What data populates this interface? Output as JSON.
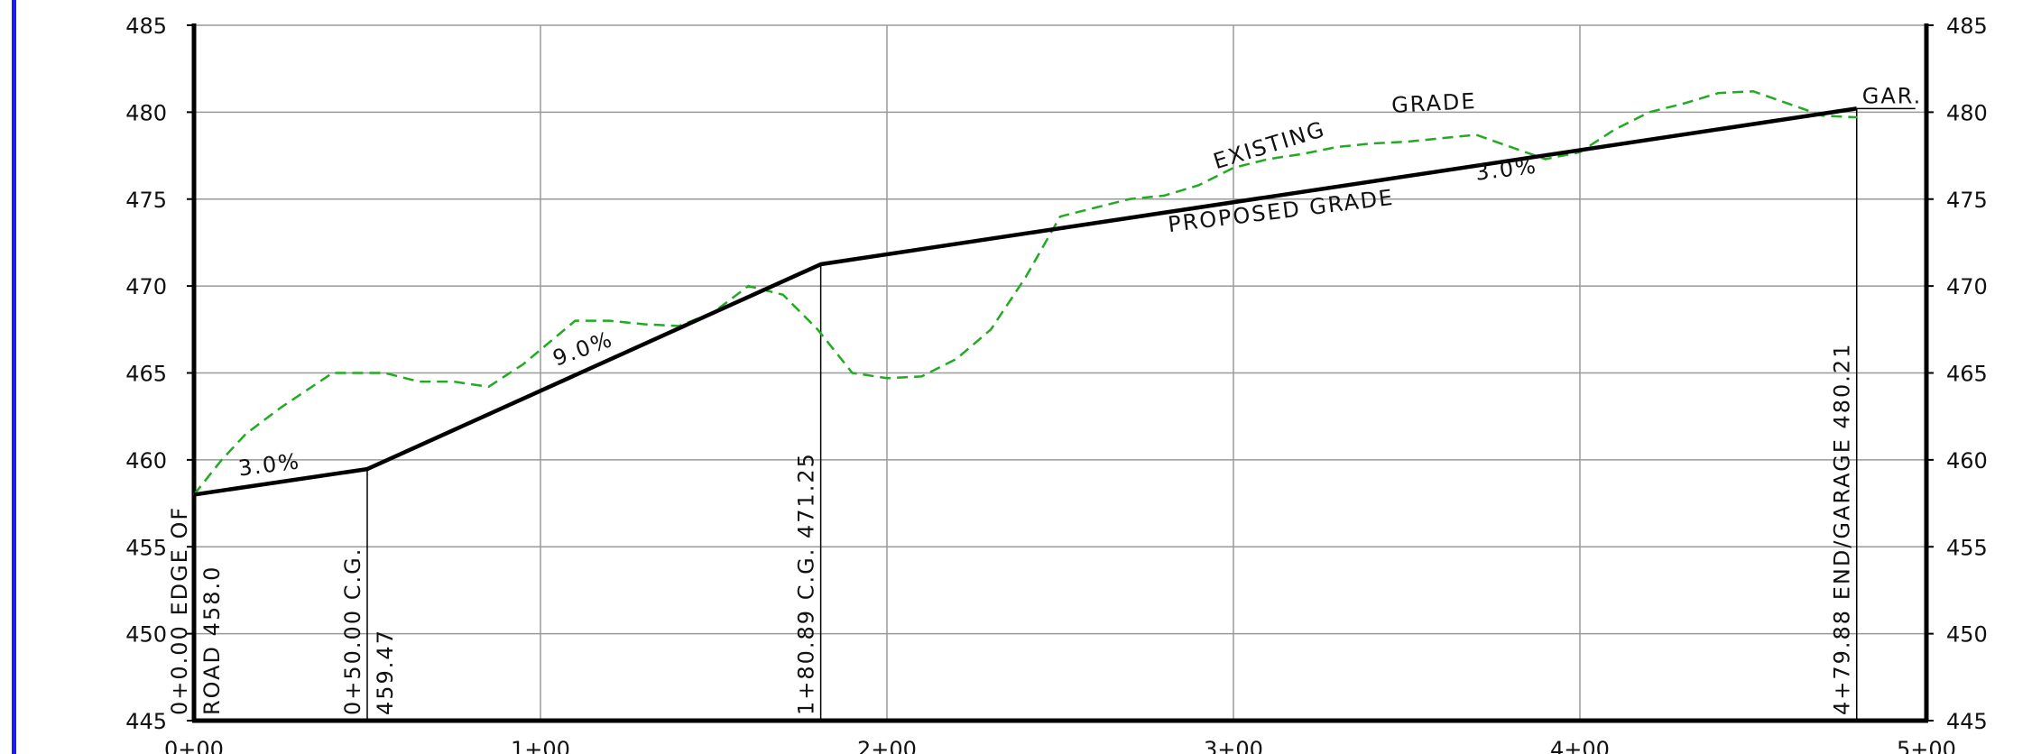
{
  "chart_data": {
    "type": "line",
    "xlabel": "",
    "ylabel": "",
    "xlim": [
      0,
      500
    ],
    "ylim": [
      445,
      485
    ],
    "x_ticks": [
      "0+00",
      "1+00",
      "2+00",
      "3+00",
      "4+00",
      "5+00"
    ],
    "y_ticks": [
      "445",
      "450",
      "455",
      "460",
      "465",
      "470",
      "475",
      "480",
      "485"
    ],
    "grid": true,
    "colors": {
      "proposed": "#000000",
      "existing": "#22aa22",
      "frame_accent": "#1a1aff",
      "grid": "#9a9a9a"
    },
    "series": [
      {
        "name": "PROPOSED GRADE",
        "style": "solid",
        "x": [
          0,
          50,
          180.89,
          479.88
        ],
        "y": [
          458.0,
          459.47,
          471.25,
          480.21
        ]
      },
      {
        "name": "EXISTING GRADE",
        "style": "dashed",
        "x": [
          0,
          8,
          15,
          25,
          40,
          55,
          65,
          75,
          85,
          95,
          110,
          120,
          130,
          140,
          150,
          160,
          170,
          180,
          190,
          200,
          210,
          220,
          230,
          240,
          250,
          260,
          270,
          280,
          290,
          300,
          310,
          320,
          330,
          340,
          350,
          360,
          370,
          380,
          390,
          400,
          410,
          420,
          430,
          440,
          450,
          460,
          470,
          480
        ],
        "y": [
          458.0,
          460.0,
          461.5,
          463.0,
          465.0,
          465.0,
          464.5,
          464.5,
          464.2,
          465.5,
          468.0,
          468.0,
          467.8,
          467.7,
          468.5,
          470.0,
          469.5,
          467.5,
          465.0,
          464.7,
          464.8,
          465.8,
          467.5,
          470.5,
          474.0,
          474.5,
          475.0,
          475.2,
          475.8,
          476.8,
          477.3,
          477.6,
          478.0,
          478.2,
          478.3,
          478.5,
          478.7,
          478.0,
          477.3,
          477.7,
          479.0,
          480.0,
          480.5,
          481.1,
          481.2,
          480.5,
          479.8,
          479.7
        ]
      }
    ],
    "annotations": {
      "slopes": [
        "3.0%",
        "9.0%",
        "3.0%"
      ],
      "existing_label": [
        "EXISTING",
        "GRADE"
      ],
      "proposed_label": "PROPOSED GRADE",
      "gar": "GAR.",
      "stations": [
        {
          "lines": [
            "0+0.00 EDGE OF",
            "ROAD 458.0"
          ],
          "x": 0
        },
        {
          "lines": [
            "0+50.00 C.G.",
            "459.47"
          ],
          "x": 50
        },
        {
          "lines": [
            "1+80.89 C.G. 471.25"
          ],
          "x": 180.89
        },
        {
          "lines": [
            "4+79.88 END/GARAGE 480.21"
          ],
          "x": 479.88
        }
      ]
    }
  }
}
